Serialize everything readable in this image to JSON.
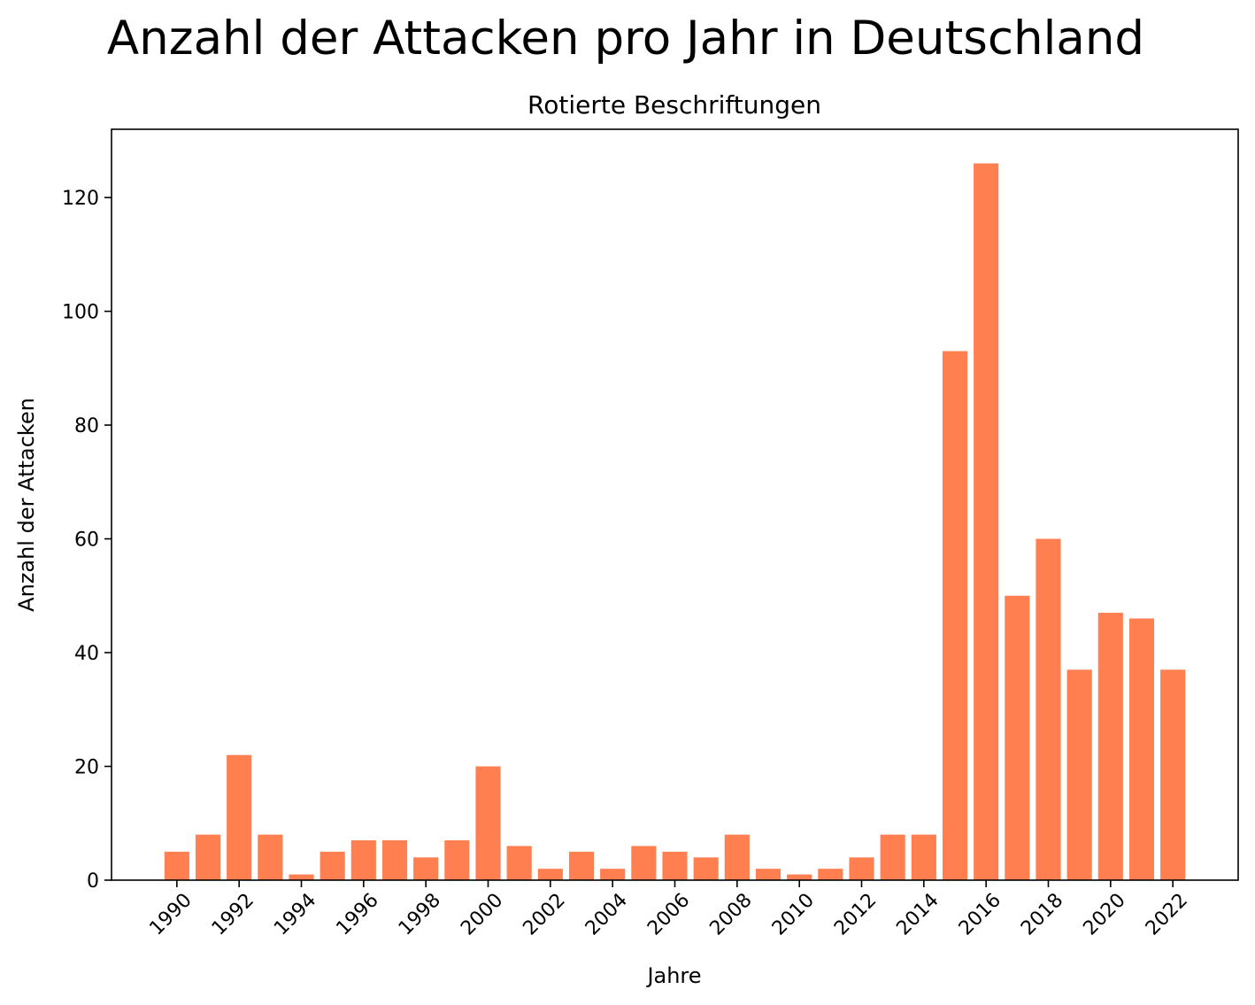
{
  "chart_data": {
    "type": "bar",
    "suptitle": "Anzahl der Attacken pro Jahr in Deutschland",
    "title": "Rotierte Beschriftungen",
    "xlabel": "Jahre",
    "ylabel": "Anzahl der Attacken",
    "x": [
      1990,
      1991,
      1992,
      1993,
      1994,
      1995,
      1996,
      1997,
      1998,
      1999,
      2000,
      2001,
      2002,
      2003,
      2004,
      2005,
      2006,
      2007,
      2008,
      2009,
      2010,
      2011,
      2012,
      2013,
      2014,
      2015,
      2016,
      2017,
      2018,
      2019,
      2020,
      2021,
      2022
    ],
    "values": [
      5,
      8,
      22,
      8,
      1,
      5,
      7,
      7,
      4,
      7,
      20,
      6,
      2,
      5,
      2,
      6,
      5,
      4,
      8,
      2,
      1,
      2,
      4,
      8,
      8,
      93,
      126,
      50,
      60,
      37,
      47,
      46,
      37
    ],
    "x_ticks": [
      "1990",
      "1992",
      "1994",
      "1996",
      "1998",
      "2000",
      "2002",
      "2004",
      "2006",
      "2008",
      "2010",
      "2012",
      "2014",
      "2016",
      "2018",
      "2020",
      "2022"
    ],
    "x_tick_rotation": 45,
    "y_ticks": [
      "0",
      "20",
      "40",
      "60",
      "80",
      "100",
      "120"
    ],
    "ylim": [
      0,
      132
    ],
    "xlim": [
      1987.9,
      2024.1
    ],
    "bar_color": "#ff7f50",
    "grid": false
  }
}
